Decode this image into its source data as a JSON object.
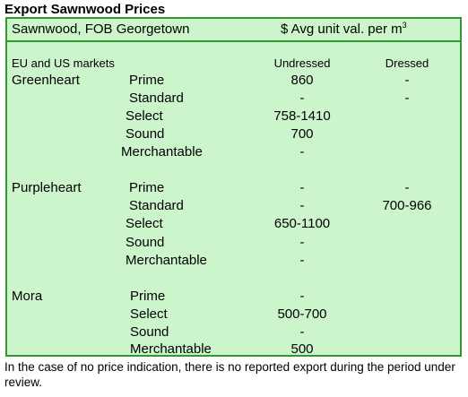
{
  "title": "Export Sawnwood Prices",
  "header": {
    "left": "Sawnwood, FOB Georgetown",
    "right": "$ Avg unit val. per m",
    "right_sup": "3"
  },
  "subheader": {
    "markets": "EU and US markets",
    "col_undressed": "Undressed",
    "col_dressed": "Dressed"
  },
  "groups": [
    {
      "species": "Greenheart",
      "rows": [
        {
          "grade": "Prime",
          "undressed": "860",
          "dressed": "-"
        },
        {
          "grade": "Standard",
          "undressed": "-",
          "dressed": "-"
        },
        {
          "grade": "Select",
          "undressed": "758-1410",
          "dressed": ""
        },
        {
          "grade": "Sound",
          "undressed": "700",
          "dressed": ""
        },
        {
          "grade": "Merchantable",
          "undressed": "-",
          "dressed": ""
        }
      ]
    },
    {
      "species": "Purpleheart",
      "rows": [
        {
          "grade": "Prime",
          "undressed": "-",
          "dressed": "-"
        },
        {
          "grade": "Standard",
          "undressed": "-",
          "dressed": "700-966"
        },
        {
          "grade": "Select",
          "undressed": "650-1100",
          "dressed": ""
        },
        {
          "grade": "Sound",
          "undressed": "-",
          "dressed": ""
        },
        {
          "grade": "Merchantable",
          "undressed": "-",
          "dressed": ""
        }
      ]
    },
    {
      "species": "Mora",
      "rows": [
        {
          "grade": "Prime",
          "undressed": "-",
          "dressed": ""
        },
        {
          "grade": "Select",
          "undressed": "500-700",
          "dressed": ""
        },
        {
          "grade": "Sound",
          "undressed": "-",
          "dressed": ""
        },
        {
          "grade": "Merchantable",
          "undressed": "500",
          "dressed": ""
        }
      ]
    }
  ],
  "footnote": "In the case of no price indication, there is no reported export during the period under review.",
  "colors": {
    "fill": "#ccf5cc",
    "border": "#2f9a2f"
  }
}
